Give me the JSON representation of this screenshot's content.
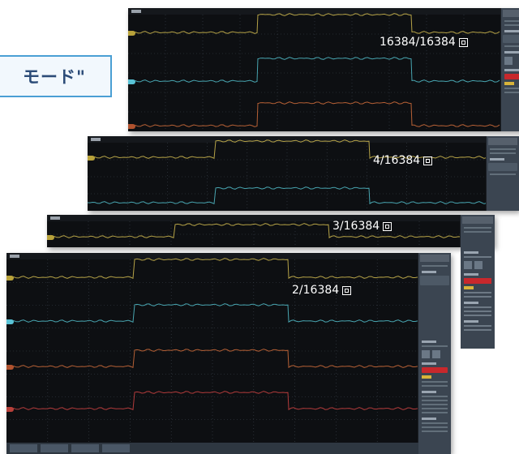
{
  "mode_label": "モード\"",
  "segments": [
    {
      "counter": "16384/16384",
      "icon": "square-frame-icon"
    },
    {
      "counter": "4/16384",
      "icon": "square-frame-icon"
    },
    {
      "counter": "3/16384",
      "icon": "square-frame-icon"
    },
    {
      "counter": "2/16384",
      "icon": "square-frame-icon"
    }
  ],
  "trace_colors": {
    "ch1": "#c9b44e",
    "ch2": "#4fb6c2",
    "ch3": "#c9693a",
    "ch4": "#c44040"
  },
  "marker_colors": {
    "ch1": "#b8a23a",
    "ch2": "#59c3d6",
    "ch3": "#b0522e"
  }
}
